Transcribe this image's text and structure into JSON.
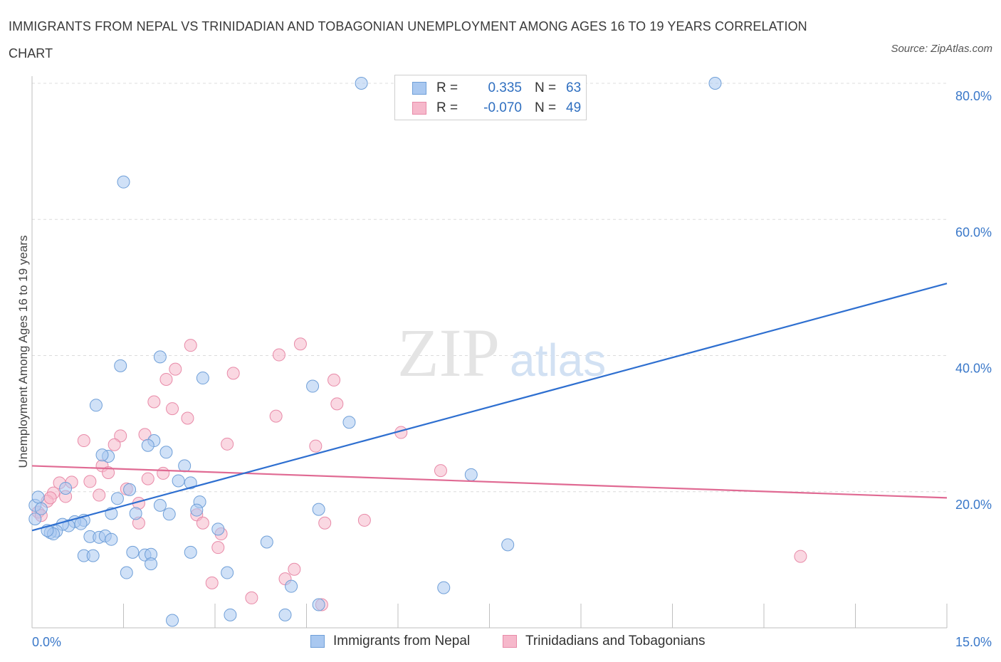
{
  "title": "IMMIGRANTS FROM NEPAL VS TRINIDADIAN AND TOBAGONIAN UNEMPLOYMENT AMONG AGES 16 TO 19 YEARS CORRELATION CHART",
  "source": "Source: ZipAtlas.com",
  "watermark": {
    "zip": "ZIP",
    "atlas": "atlas"
  },
  "legend_stats": [
    {
      "r_label": "R =",
      "r_value": "0.335",
      "n_label": "N =",
      "n_value": "63",
      "color": "#a9c8f0"
    },
    {
      "r_label": "R =",
      "r_value": "-0.070",
      "n_label": "N =",
      "n_value": "49",
      "color": "#f6b8cb"
    }
  ],
  "colors": {
    "blue_fill": "#a9c8f0",
    "blue_stroke": "#6f9fd8",
    "blue_line": "#2e6fd0",
    "pink_fill": "#f6b8cb",
    "pink_stroke": "#e88aa8",
    "pink_line": "#e06a93",
    "grid": "#dcdcdc",
    "tick_text": "#3a78c9"
  },
  "chart_data": {
    "type": "scatter",
    "title": "IMMIGRANTS FROM NEPAL VS TRINIDADIAN AND TOBAGONIAN UNEMPLOYMENT AMONG AGES 16 TO 19 YEARS CORRELATION CHART",
    "xlabel": "",
    "ylabel": "Unemployment Among Ages 16 to 19 years",
    "xlim": [
      0,
      15
    ],
    "ylim": [
      0,
      80
    ],
    "x_tick_labels": [
      "0.0%",
      "15.0%"
    ],
    "y_tick_labels": [
      "20.0%",
      "40.0%",
      "60.0%",
      "80.0%"
    ],
    "y_ticks": [
      20,
      40,
      60,
      80
    ],
    "grid": true,
    "legend_position": "bottom",
    "series": [
      {
        "name": "Immigrants from Nepal",
        "color": "#a9c8f0",
        "trend": {
          "x": [
            0,
            15
          ],
          "y": [
            14.3,
            50.6
          ]
        },
        "points": [
          [
            5.4,
            80
          ],
          [
            11.2,
            80
          ],
          [
            1.5,
            65.5
          ],
          [
            1.45,
            38.5
          ],
          [
            2.1,
            39.8
          ],
          [
            2.8,
            36.7
          ],
          [
            4.6,
            35.5
          ],
          [
            5.2,
            30.2
          ],
          [
            1.05,
            32.7
          ],
          [
            2.0,
            27.5
          ],
          [
            1.9,
            26.8
          ],
          [
            2.2,
            25.8
          ],
          [
            1.25,
            25.2
          ],
          [
            1.15,
            25.4
          ],
          [
            2.5,
            23.8
          ],
          [
            7.2,
            22.5
          ],
          [
            2.4,
            21.6
          ],
          [
            2.6,
            21.3
          ],
          [
            0.55,
            20.5
          ],
          [
            1.6,
            20.3
          ],
          [
            1.4,
            19.0
          ],
          [
            2.1,
            18.0
          ],
          [
            2.75,
            18.5
          ],
          [
            2.7,
            17.3
          ],
          [
            4.7,
            17.4
          ],
          [
            1.3,
            16.8
          ],
          [
            1.7,
            16.8
          ],
          [
            2.25,
            16.7
          ],
          [
            0.85,
            15.8
          ],
          [
            0.7,
            15.6
          ],
          [
            0.8,
            15.3
          ],
          [
            0.6,
            15.0
          ],
          [
            0.5,
            15.2
          ],
          [
            0.4,
            14.2
          ],
          [
            0.3,
            14.0
          ],
          [
            0.35,
            13.8
          ],
          [
            0.25,
            14.3
          ],
          [
            0.95,
            13.4
          ],
          [
            1.1,
            13.3
          ],
          [
            1.2,
            13.5
          ],
          [
            1.3,
            13.0
          ],
          [
            3.05,
            14.5
          ],
          [
            3.85,
            12.6
          ],
          [
            7.8,
            12.2
          ],
          [
            1.65,
            11.1
          ],
          [
            1.85,
            10.7
          ],
          [
            1.95,
            10.8
          ],
          [
            2.6,
            11.1
          ],
          [
            0.85,
            10.6
          ],
          [
            1.0,
            10.6
          ],
          [
            1.95,
            9.4
          ],
          [
            1.55,
            8.1
          ],
          [
            3.2,
            8.1
          ],
          [
            4.25,
            6.1
          ],
          [
            6.75,
            5.9
          ],
          [
            4.7,
            3.4
          ],
          [
            3.25,
            1.9
          ],
          [
            4.15,
            1.9
          ],
          [
            2.3,
            1.1
          ],
          [
            0.05,
            18.0
          ],
          [
            0.1,
            19.2
          ],
          [
            0.15,
            17.5
          ],
          [
            0.05,
            16.0
          ]
        ]
      },
      {
        "name": "Trinidadians and Tobagonians",
        "color": "#f6b8cb",
        "trend": {
          "x": [
            0,
            15
          ],
          "y": [
            23.8,
            19.1
          ]
        },
        "points": [
          [
            2.6,
            41.5
          ],
          [
            4.4,
            41.7
          ],
          [
            4.05,
            40.1
          ],
          [
            2.35,
            38.0
          ],
          [
            3.3,
            37.4
          ],
          [
            2.2,
            36.5
          ],
          [
            4.95,
            36.4
          ],
          [
            2.0,
            33.2
          ],
          [
            2.3,
            32.2
          ],
          [
            5.0,
            32.9
          ],
          [
            2.55,
            30.8
          ],
          [
            4.0,
            31.1
          ],
          [
            1.45,
            28.2
          ],
          [
            1.85,
            28.4
          ],
          [
            0.85,
            27.5
          ],
          [
            3.2,
            27.0
          ],
          [
            4.65,
            26.7
          ],
          [
            6.05,
            28.7
          ],
          [
            1.35,
            26.9
          ],
          [
            1.15,
            23.8
          ],
          [
            1.25,
            22.8
          ],
          [
            2.15,
            22.7
          ],
          [
            1.9,
            21.9
          ],
          [
            6.7,
            23.1
          ],
          [
            0.45,
            21.3
          ],
          [
            0.65,
            21.4
          ],
          [
            0.95,
            21.5
          ],
          [
            1.55,
            20.4
          ],
          [
            0.35,
            19.8
          ],
          [
            0.55,
            19.3
          ],
          [
            1.1,
            19.5
          ],
          [
            0.25,
            18.6
          ],
          [
            0.3,
            19.1
          ],
          [
            1.75,
            18.3
          ],
          [
            2.7,
            16.6
          ],
          [
            2.8,
            15.4
          ],
          [
            1.75,
            15.4
          ],
          [
            5.45,
            15.8
          ],
          [
            4.8,
            15.4
          ],
          [
            3.1,
            13.8
          ],
          [
            3.05,
            11.8
          ],
          [
            12.6,
            10.5
          ],
          [
            4.3,
            8.6
          ],
          [
            4.15,
            7.2
          ],
          [
            2.95,
            6.6
          ],
          [
            3.6,
            4.4
          ],
          [
            4.75,
            3.4
          ],
          [
            0.1,
            17.0
          ],
          [
            0.15,
            16.5
          ]
        ]
      }
    ]
  },
  "bottom_legend": [
    {
      "label": "Immigrants from Nepal",
      "color": "#a9c8f0"
    },
    {
      "label": "Trinidadians and Tobagonians",
      "color": "#f6b8cb"
    }
  ]
}
